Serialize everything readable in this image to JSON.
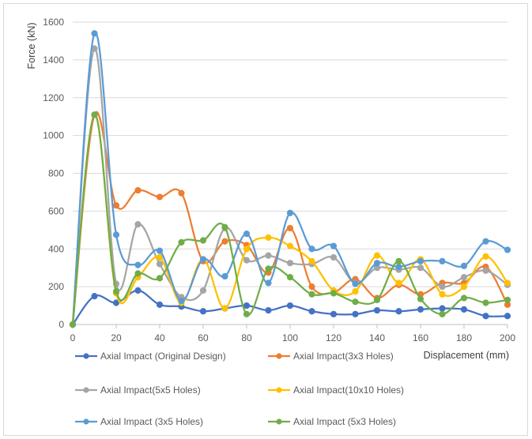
{
  "chart_data": {
    "type": "line",
    "smooth": true,
    "xlabel": "Displacement (mm)",
    "ylabel": "Force (kN)",
    "xlim": [
      0,
      200
    ],
    "ylim": [
      0,
      1600
    ],
    "xticks": [
      "0",
      "20",
      "40",
      "60",
      "80",
      "100",
      "120",
      "140",
      "160",
      "180",
      "200"
    ],
    "yticks": [
      "0",
      "200",
      "400",
      "600",
      "800",
      "1000",
      "1200",
      "1400",
      "1600"
    ],
    "grid": "horizontal",
    "legend_position": "bottom",
    "x": [
      0,
      10,
      20,
      30,
      40,
      50,
      60,
      70,
      80,
      90,
      100,
      110,
      120,
      130,
      140,
      150,
      160,
      170,
      180,
      190,
      200
    ],
    "series": [
      {
        "name": "Axial Impact (Original Design)",
        "color": "#4472c4",
        "values": [
          0,
          150,
          115,
          180,
          105,
          95,
          70,
          85,
          100,
          75,
          100,
          70,
          55,
          55,
          75,
          70,
          80,
          85,
          80,
          45,
          45
        ]
      },
      {
        "name": "Axial Impact(3x3 Holes)",
        "color": "#ed7d31",
        "values": [
          0,
          1110,
          630,
          710,
          675,
          695,
          335,
          440,
          420,
          275,
          510,
          200,
          170,
          240,
          140,
          210,
          160,
          220,
          220,
          305,
          105
        ]
      },
      {
        "name": "Axial Impact(5x5 Holes)",
        "color": "#a5a5a5",
        "values": [
          0,
          1460,
          215,
          530,
          320,
          145,
          180,
          510,
          340,
          365,
          325,
          320,
          355,
          220,
          300,
          290,
          300,
          200,
          250,
          285,
          210
        ]
      },
      {
        "name": "Axial Impact(10x10 Holes)",
        "color": "#ffc000",
        "values": [
          0,
          1110,
          165,
          250,
          355,
          115,
          345,
          85,
          400,
          460,
          415,
          335,
          180,
          175,
          365,
          220,
          345,
          160,
          200,
          360,
          220
        ]
      },
      {
        "name": "Axial Impact (3x5 Holes)",
        "color": "#5b9bd5",
        "values": [
          0,
          1540,
          475,
          315,
          390,
          125,
          345,
          255,
          480,
          220,
          590,
          400,
          415,
          215,
          325,
          305,
          335,
          335,
          310,
          440,
          395
        ]
      },
      {
        "name": "Axial Impact (5x3 Holes)",
        "color": "#70ad47",
        "values": [
          0,
          1110,
          175,
          270,
          245,
          435,
          445,
          515,
          55,
          295,
          250,
          160,
          165,
          120,
          130,
          335,
          135,
          55,
          140,
          115,
          130
        ]
      }
    ]
  }
}
